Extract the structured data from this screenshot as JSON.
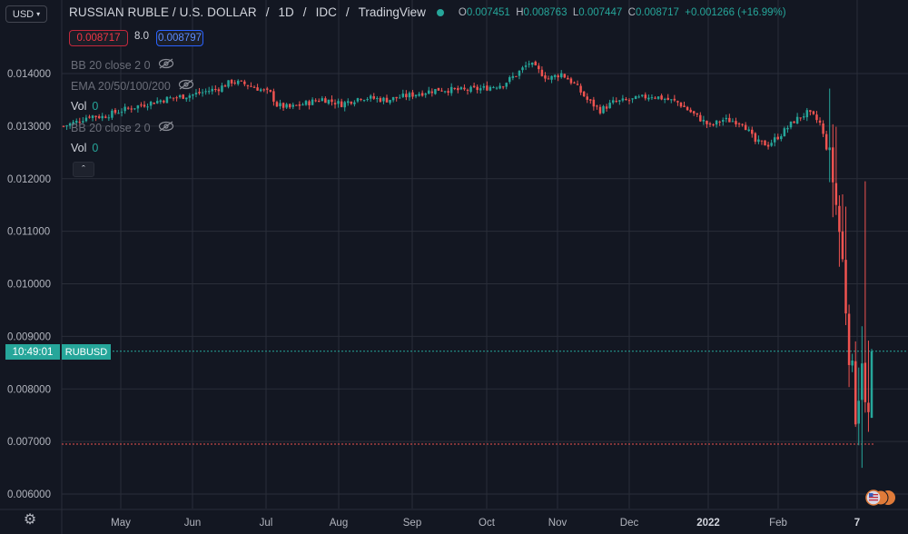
{
  "toolbar": {
    "currency_label": "USD"
  },
  "legend": {
    "title": "RUSSIAN RUBLE / U.S. DOLLAR",
    "interval": "1D",
    "exchange": "IDC",
    "source": "TradingView",
    "open_label": "O",
    "open": "0.007451",
    "high_label": "H",
    "high": "0.008763",
    "low_label": "L",
    "low": "0.007447",
    "close_label": "C",
    "close": "0.008717",
    "change": "+0.001266 (+16.99%)",
    "status_color": "#26a69a"
  },
  "quote": {
    "bid": "0.008717",
    "spread": "8.0",
    "ask": "0.008797"
  },
  "indicators": [
    {
      "label": "BB 20 close 2 0",
      "hidden": true
    },
    {
      "label": "EMA 20/50/100/200",
      "hidden": true
    },
    {
      "label": "Vol",
      "value": "0"
    },
    {
      "label": "BB 20 close 2 0",
      "hidden": true
    },
    {
      "label": "Vol",
      "value": "0"
    }
  ],
  "price_tags": {
    "time": "10:49:01",
    "symbol": "RUBUSD"
  },
  "colors": {
    "background": "#131722",
    "grid": "#2a2e39",
    "up": "#26a69a",
    "down": "#ef5350"
  },
  "chart_data": {
    "type": "candlestick",
    "symbol": "RUBUSD",
    "x_ticks": [
      "May",
      "Jun",
      "Jul",
      "Aug",
      "Sep",
      "Oct",
      "Nov",
      "Dec",
      "2022",
      "Feb",
      "7"
    ],
    "y_ticks": [
      "0.014000",
      "0.013000",
      "0.012000",
      "0.011000",
      "0.010000",
      "0.009000",
      "0.008000",
      "0.007000",
      "0.006000"
    ],
    "y_tick_values": [
      0.014,
      0.013,
      0.012,
      0.011,
      0.01,
      0.009,
      0.008,
      0.007,
      0.006
    ],
    "ylim": [
      0.0056,
      0.015
    ],
    "last_close": 0.008717,
    "low_line": 0.00695,
    "close_path_approx": [
      [
        0,
        0.013
      ],
      [
        4,
        0.01308
      ],
      [
        8,
        0.0132
      ],
      [
        12,
        0.01318
      ],
      [
        18,
        0.0133
      ],
      [
        24,
        0.0134
      ],
      [
        32,
        0.01352
      ],
      [
        40,
        0.0136
      ],
      [
        48,
        0.01372
      ],
      [
        52,
        0.01385
      ],
      [
        56,
        0.0138
      ],
      [
        60,
        0.01372
      ],
      [
        64,
        0.01362
      ],
      [
        66,
        0.0134
      ],
      [
        70,
        0.01335
      ],
      [
        76,
        0.01345
      ],
      [
        80,
        0.01352
      ],
      [
        86,
        0.01342
      ],
      [
        92,
        0.01355
      ],
      [
        100,
        0.0135
      ],
      [
        108,
        0.0136
      ],
      [
        116,
        0.0137
      ],
      [
        124,
        0.01368
      ],
      [
        130,
        0.01372
      ],
      [
        136,
        0.0138
      ],
      [
        140,
        0.01398
      ],
      [
        144,
        0.0142
      ],
      [
        146,
        0.0141
      ],
      [
        150,
        0.0139
      ],
      [
        154,
        0.014
      ],
      [
        158,
        0.0138
      ],
      [
        162,
        0.0135
      ],
      [
        166,
        0.0133
      ],
      [
        170,
        0.01345
      ],
      [
        176,
        0.0135
      ],
      [
        182,
        0.01358
      ],
      [
        186,
        0.01352
      ],
      [
        190,
        0.01345
      ],
      [
        196,
        0.01318
      ],
      [
        200,
        0.013
      ],
      [
        204,
        0.01312
      ],
      [
        210,
        0.01308
      ],
      [
        214,
        0.0127
      ],
      [
        218,
        0.01265
      ],
      [
        222,
        0.01285
      ],
      [
        226,
        0.0131
      ],
      [
        230,
        0.01325
      ],
      [
        232,
        0.01318
      ],
      [
        234,
        0.01305
      ],
      [
        236,
        0.0126
      ],
      [
        238,
        0.012
      ],
      [
        240,
        0.011
      ],
      [
        241,
        0.0104
      ],
      [
        242,
        0.0096
      ],
      [
        243,
        0.0088
      ],
      [
        244,
        0.0082
      ],
      [
        245,
        0.0076
      ],
      [
        246,
        0.008
      ],
      [
        247,
        0.0087
      ],
      [
        248,
        0.0076
      ],
      [
        249,
        0.00745
      ],
      [
        250,
        0.00872
      ]
    ]
  }
}
